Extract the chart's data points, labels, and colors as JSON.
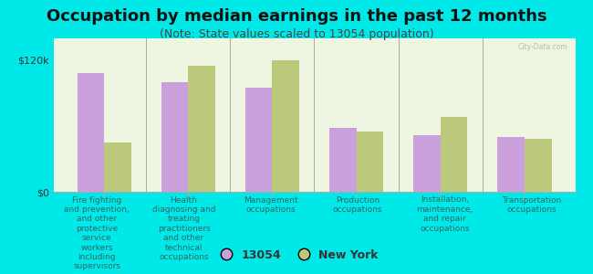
{
  "title": "Occupation by median earnings in the past 12 months",
  "subtitle": "(Note: State values scaled to 13054 population)",
  "background_color": "#00e8e8",
  "plot_bg_color": "#eef5e0",
  "categories": [
    "Fire fighting\nand prevention,\nand other\nprotective\nservice\nworkers\nincluding\nsupervisors",
    "Health\ndiagnosing and\ntreating\npractitioners\nand other\ntechnical\noccupations",
    "Management\noccupations",
    "Production\noccupations",
    "Installation,\nmaintenance,\nand repair\noccupations",
    "Transportation\noccupations"
  ],
  "values_13054": [
    108000,
    100000,
    95000,
    58000,
    52000,
    50000
  ],
  "values_ny": [
    45000,
    115000,
    120000,
    55000,
    68000,
    48000
  ],
  "bar_color_13054": "#c9a0dc",
  "bar_color_ny": "#bdc97a",
  "ylabel_ticks": [
    "$0",
    "$120k"
  ],
  "ytick_vals": [
    0,
    120000
  ],
  "legend_13054": "13054",
  "legend_ny": "New York",
  "bar_width": 0.32,
  "title_fontsize": 13,
  "subtitle_fontsize": 9,
  "label_fontsize": 6.5,
  "tick_fontsize": 8,
  "legend_fontsize": 9,
  "separator_color": "#aaaaaa",
  "watermark": "City-Data.com",
  "ylim_max": 140000
}
